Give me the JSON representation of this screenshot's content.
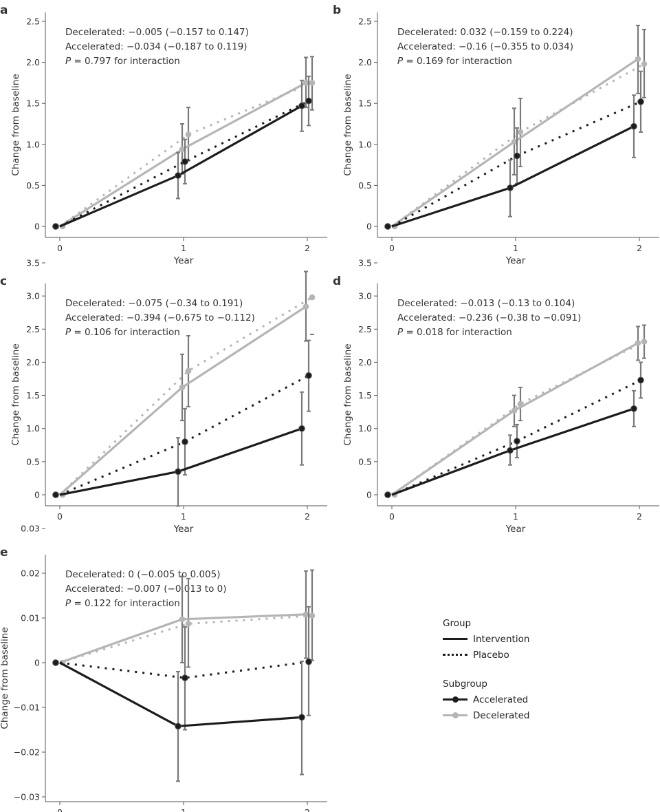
{
  "chart_data": [
    {
      "panel": "a",
      "type": "line",
      "annotations": {
        "decelerated": "Decelerated: −0.005 (−0.157 to 0.147)",
        "accelerated": "Accelerated: −0.034 (−0.187 to 0.119)",
        "p_label": "P",
        "p_text": " = 0.797 for interaction"
      },
      "xlabel": "Year",
      "ylabel": "Change from baseline",
      "xticks": [
        "0",
        "1",
        "2"
      ],
      "ylim": [
        0,
        2.5
      ],
      "yticks": [
        {
          "v": 0,
          "l": "0"
        },
        {
          "v": 0.5,
          "l": "0.5"
        },
        {
          "v": 1,
          "l": "1.0"
        },
        {
          "v": 1.5,
          "l": "1.5"
        },
        {
          "v": 2,
          "l": "2.0"
        },
        {
          "v": 2.5,
          "l": "2.5"
        }
      ],
      "series": [
        {
          "group": "Placebo",
          "subgroup": "Decelerated",
          "x": [
            0,
            1,
            2
          ],
          "y": [
            0,
            1.12,
            1.75
          ],
          "ci_low": [
            0,
            0.8,
            1.42
          ],
          "ci_high": [
            0,
            1.45,
            2.07
          ]
        },
        {
          "group": "Intervention",
          "subgroup": "Decelerated",
          "x": [
            0,
            1,
            2
          ],
          "y": [
            0,
            0.94,
            1.75
          ],
          "ci_low": [
            0,
            0.64,
            1.45
          ],
          "ci_high": [
            0,
            1.25,
            2.06
          ]
        },
        {
          "group": "Placebo",
          "subgroup": "Accelerated",
          "x": [
            0,
            1,
            2
          ],
          "y": [
            0,
            0.79,
            1.53
          ],
          "ci_low": [
            0,
            0.52,
            1.23
          ],
          "ci_high": [
            0,
            1.06,
            1.83
          ]
        },
        {
          "group": "Intervention",
          "subgroup": "Accelerated",
          "x": [
            0,
            1,
            2
          ],
          "y": [
            0,
            0.62,
            1.47
          ],
          "ci_low": [
            0,
            0.34,
            1.16
          ],
          "ci_high": [
            0,
            0.9,
            1.78
          ]
        }
      ]
    },
    {
      "panel": "b",
      "type": "line",
      "annotations": {
        "decelerated": "Decelerated: 0.032 (−0.159 to 0.224)",
        "accelerated": "Accelerated: −0.16 (−0.355 to 0.034)",
        "p_label": "P",
        "p_text": " = 0.169 for interaction"
      },
      "xlabel": "Year",
      "ylabel": "Change from baseline",
      "xticks": [
        "0",
        "1",
        "2"
      ],
      "ylim": [
        0,
        2.5
      ],
      "yticks": [
        {
          "v": 0,
          "l": "0"
        },
        {
          "v": 0.5,
          "l": "0.5"
        },
        {
          "v": 1,
          "l": "1.0"
        },
        {
          "v": 1.5,
          "l": "1.5"
        },
        {
          "v": 2,
          "l": "2.0"
        },
        {
          "v": 2.5,
          "l": "2.5"
        }
      ],
      "series": [
        {
          "group": "Placebo",
          "subgroup": "Decelerated",
          "x": [
            0,
            1,
            2
          ],
          "y": [
            0,
            1.15,
            1.98
          ],
          "ci_low": [
            0,
            0.73,
            1.57
          ],
          "ci_high": [
            0,
            1.56,
            2.4
          ]
        },
        {
          "group": "Intervention",
          "subgroup": "Decelerated",
          "x": [
            0,
            1,
            2
          ],
          "y": [
            0,
            1.03,
            2.04
          ],
          "ci_low": [
            0,
            0.63,
            1.62
          ],
          "ci_high": [
            0,
            1.44,
            2.45
          ]
        },
        {
          "group": "Placebo",
          "subgroup": "Accelerated",
          "x": [
            0,
            1,
            2
          ],
          "y": [
            0,
            0.86,
            1.52
          ],
          "ci_low": [
            0,
            0.52,
            1.15
          ],
          "ci_high": [
            0,
            1.2,
            1.89
          ]
        },
        {
          "group": "Intervention",
          "subgroup": "Accelerated",
          "x": [
            0,
            1,
            2
          ],
          "y": [
            0,
            0.47,
            1.22
          ],
          "ci_low": [
            0,
            0.12,
            0.84
          ],
          "ci_high": [
            0,
            0.81,
            1.6
          ]
        }
      ]
    },
    {
      "panel": "c",
      "type": "line",
      "annotations": {
        "decelerated": "Decelerated: −0.075 (−0.34 to 0.191)",
        "accelerated": "Accelerated: −0.394 (−0.675 to −0.112)",
        "p_label": "P",
        "p_text": " = 0.106 for interaction"
      },
      "xlabel": "Year",
      "ylabel": "Change from baseline",
      "xticks": [
        "0",
        "1",
        "2"
      ],
      "ylim": [
        0,
        3.5
      ],
      "yticks": [
        {
          "v": 0,
          "l": "0"
        },
        {
          "v": 0.5,
          "l": "0.5"
        },
        {
          "v": 1,
          "l": "1.0"
        },
        {
          "v": 1.5,
          "l": "1.5"
        },
        {
          "v": 2,
          "l": "2.0"
        },
        {
          "v": 2.5,
          "l": "2.5"
        },
        {
          "v": 3,
          "l": "3.0"
        },
        {
          "v": 3.5,
          "l": "3.5"
        }
      ],
      "series": [
        {
          "group": "Placebo",
          "subgroup": "Decelerated",
          "x": [
            0,
            1,
            2
          ],
          "y": [
            0,
            1.87,
            2.98
          ],
          "ci_low": [
            0,
            1.33,
            2.42
          ],
          "ci_high": [
            0,
            2.4,
            null
          ]
        },
        {
          "group": "Intervention",
          "subgroup": "Decelerated",
          "x": [
            0,
            1,
            2
          ],
          "y": [
            0,
            1.62,
            2.84
          ],
          "ci_low": [
            0,
            1.12,
            2.32
          ],
          "ci_high": [
            0,
            2.12,
            3.37
          ]
        },
        {
          "group": "Placebo",
          "subgroup": "Accelerated",
          "x": [
            0,
            1,
            2
          ],
          "y": [
            0,
            0.8,
            1.8
          ],
          "ci_low": [
            0,
            0.3,
            1.26
          ],
          "ci_high": [
            0,
            1.3,
            2.33
          ]
        },
        {
          "group": "Intervention",
          "subgroup": "Accelerated",
          "x": [
            0,
            1,
            2
          ],
          "y": [
            0,
            0.35,
            1.0
          ],
          "ci_low": [
            0,
            -0.17,
            0.45
          ],
          "ci_high": [
            0,
            0.86,
            1.55
          ]
        }
      ]
    },
    {
      "panel": "d",
      "type": "line",
      "annotations": {
        "decelerated": "Decelerated: −0.013 (−0.13 to 0.104)",
        "accelerated": "Accelerated: −0.236 (−0.38 to −0.091)",
        "p_label": "P",
        "p_text": " = 0.018 for interaction"
      },
      "xlabel": "Year",
      "ylabel": "Change from baseline",
      "xticks": [
        "0",
        "1",
        "2"
      ],
      "ylim": [
        0,
        3.5
      ],
      "yticks": [
        {
          "v": 0,
          "l": "0"
        },
        {
          "v": 0.5,
          "l": "0.5"
        },
        {
          "v": 1,
          "l": "1.0"
        },
        {
          "v": 1.5,
          "l": "1.5"
        },
        {
          "v": 2,
          "l": "2.0"
        },
        {
          "v": 2.5,
          "l": "2.5"
        },
        {
          "v": 3,
          "l": "3.0"
        },
        {
          "v": 3.5,
          "l": "3.5"
        }
      ],
      "series": [
        {
          "group": "Placebo",
          "subgroup": "Decelerated",
          "x": [
            0,
            1,
            2
          ],
          "y": [
            0,
            1.37,
            2.31
          ],
          "ci_low": [
            0,
            1.12,
            2.06
          ],
          "ci_high": [
            0,
            1.62,
            2.56
          ]
        },
        {
          "group": "Intervention",
          "subgroup": "Decelerated",
          "x": [
            0,
            1,
            2
          ],
          "y": [
            0,
            1.27,
            2.29
          ],
          "ci_low": [
            0,
            1.03,
            2.03
          ],
          "ci_high": [
            0,
            1.5,
            2.54
          ]
        },
        {
          "group": "Placebo",
          "subgroup": "Accelerated",
          "x": [
            0,
            1,
            2
          ],
          "y": [
            0,
            0.81,
            1.73
          ],
          "ci_low": [
            0,
            0.56,
            1.46
          ],
          "ci_high": [
            0,
            1.06,
            2.0
          ]
        },
        {
          "group": "Intervention",
          "subgroup": "Accelerated",
          "x": [
            0,
            1,
            2
          ],
          "y": [
            0,
            0.67,
            1.3
          ],
          "ci_low": [
            0,
            0.45,
            1.03
          ],
          "ci_high": [
            0,
            0.9,
            1.57
          ]
        }
      ]
    },
    {
      "panel": "e",
      "type": "line",
      "annotations": {
        "decelerated": "Decelerated: 0 (−0.005 to 0.005)",
        "accelerated": "Accelerated: −0.007 (−0.013 to 0)",
        "p_label": "P",
        "p_text": " = 0.122 for interaction"
      },
      "xlabel": "Year",
      "ylabel": "Change from baseline",
      "xticks": [
        "0",
        "1",
        "2"
      ],
      "ylim": [
        -0.03,
        0.03
      ],
      "yticks": [
        {
          "v": -0.03,
          "l": "−0.03"
        },
        {
          "v": -0.02,
          "l": "−0.02"
        },
        {
          "v": -0.01,
          "l": "−0.01"
        },
        {
          "v": 0,
          "l": "0"
        },
        {
          "v": 0.01,
          "l": "0.01"
        },
        {
          "v": 0.02,
          "l": "0.02"
        },
        {
          "v": 0.03,
          "l": "0.03"
        }
      ],
      "series": [
        {
          "group": "Placebo",
          "subgroup": "Decelerated",
          "x": [
            0,
            1,
            2
          ],
          "y": [
            0,
            0.0087,
            0.0105
          ],
          "ci_low": [
            0,
            -0.001,
            0.0005
          ],
          "ci_high": [
            0,
            0.0188,
            0.0207
          ]
        },
        {
          "group": "Intervention",
          "subgroup": "Decelerated",
          "x": [
            0,
            1,
            2
          ],
          "y": [
            0,
            0.0097,
            0.0108
          ],
          "ci_low": [
            0,
            0.0,
            0.001
          ],
          "ci_high": [
            0,
            0.0193,
            0.0205
          ]
        },
        {
          "group": "Placebo",
          "subgroup": "Accelerated",
          "x": [
            0,
            1,
            2
          ],
          "y": [
            0,
            -0.0034,
            0.0002
          ],
          "ci_low": [
            0,
            -0.015,
            -0.0118
          ],
          "ci_high": [
            0,
            0.008,
            0.0125
          ]
        },
        {
          "group": "Intervention",
          "subgroup": "Accelerated",
          "x": [
            0,
            1,
            2
          ],
          "y": [
            0,
            -0.0142,
            -0.0122
          ],
          "ci_low": [
            0,
            -0.0265,
            -0.025
          ],
          "ci_high": [
            0,
            -0.002,
            0.0003
          ]
        }
      ]
    }
  ],
  "legend": {
    "group_title": "Group",
    "groups": [
      {
        "label": "Intervention",
        "style": "solid"
      },
      {
        "label": "Placebo",
        "style": "dotted"
      }
    ],
    "subgroup_title": "Subgroup",
    "subgroups": [
      {
        "label": "Accelerated",
        "color": "#1c1c1c"
      },
      {
        "label": "Decelerated",
        "color": "#b5b5b5"
      }
    ]
  },
  "colors": {
    "accelerated": "#1c1c1c",
    "decelerated": "#b5b5b5",
    "error_bar": "#7a7a7a",
    "axis": "#555555"
  }
}
